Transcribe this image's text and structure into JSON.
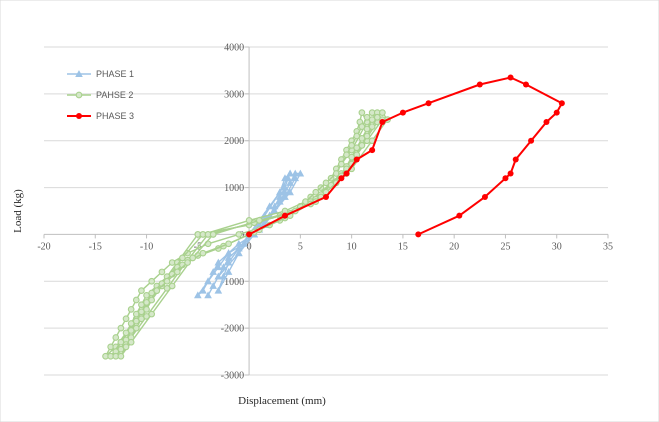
{
  "chart_data": {
    "type": "scatter",
    "title": "",
    "xlabel": "Displacement (mm)",
    "ylabel": "Load (kg)",
    "xlim": [
      -20,
      35
    ],
    "ylim": [
      -3000,
      4000
    ],
    "x_ticks": [
      -20,
      -15,
      -10,
      -5,
      0,
      5,
      10,
      15,
      20,
      25,
      30,
      35
    ],
    "y_ticks": [
      -3000,
      -2000,
      -1000,
      0,
      1000,
      2000,
      3000,
      4000
    ],
    "x_tick_labels": [
      "-20",
      "-15",
      "-10",
      "-5",
      "0",
      "5",
      "10",
      "15",
      "20",
      "25",
      "30",
      "35"
    ],
    "y_tick_labels": [
      "-3000",
      "-2000",
      "-1000",
      "0",
      "1000",
      "2000",
      "3000",
      "4000"
    ],
    "grid": "horizontal",
    "legend_position": "top-left",
    "series": [
      {
        "name": "PHASE 1",
        "color": "#9dc3e6",
        "marker": "triangle",
        "loops": [
          [
            [
              0,
              0
            ],
            [
              1,
              200
            ],
            [
              2,
              400
            ],
            [
              2.5,
              600
            ],
            [
              3,
              800
            ],
            [
              3.5,
              1000
            ],
            [
              3.8,
              1200
            ],
            [
              4,
              1300
            ],
            [
              4.5,
              1200
            ],
            [
              3.5,
              800
            ],
            [
              2,
              400
            ],
            [
              0.5,
              0
            ],
            [
              -1,
              -200
            ],
            [
              -2,
              -400
            ],
            [
              -3,
              -600
            ],
            [
              -3.5,
              -800
            ],
            [
              -4,
              -1000
            ],
            [
              -4.5,
              -1200
            ],
            [
              -5,
              -1300
            ],
            [
              -4,
              -1000
            ],
            [
              -3,
              -700
            ],
            [
              -2,
              -400
            ],
            [
              -0.5,
              -200
            ],
            [
              0.5,
              0
            ]
          ],
          [
            [
              0.5,
              0
            ],
            [
              1.5,
              200
            ],
            [
              2.5,
              500
            ],
            [
              3,
              700
            ],
            [
              3.5,
              900
            ],
            [
              4,
              1100
            ],
            [
              4.5,
              1300
            ],
            [
              5,
              1300
            ],
            [
              4,
              900
            ],
            [
              2.5,
              500
            ],
            [
              1,
              100
            ],
            [
              -1,
              -300
            ],
            [
              -2,
              -500
            ],
            [
              -2.5,
              -700
            ],
            [
              -3,
              -900
            ],
            [
              -3.5,
              -1100
            ],
            [
              -4,
              -1300
            ],
            [
              -3,
              -900
            ],
            [
              -1,
              -400
            ],
            [
              0.5,
              0
            ]
          ],
          [
            [
              0,
              0
            ],
            [
              1,
              300
            ],
            [
              2,
              600
            ],
            [
              3,
              900
            ],
            [
              3.5,
              1200
            ],
            [
              4,
              1300
            ],
            [
              3,
              900
            ],
            [
              1.5,
              400
            ],
            [
              0,
              0
            ],
            [
              -1,
              -300
            ],
            [
              -2,
              -600
            ],
            [
              -2.5,
              -900
            ],
            [
              -3,
              -1200
            ],
            [
              -2,
              -800
            ],
            [
              -1,
              -400
            ],
            [
              0,
              0
            ]
          ]
        ]
      },
      {
        "name": "PAHSE 2",
        "color": "#a9d18e",
        "marker": "circle",
        "loops": [
          [
            [
              -5,
              0
            ],
            [
              0,
              200
            ],
            [
              3,
              400
            ],
            [
              5,
              600
            ],
            [
              6,
              800
            ],
            [
              7,
              1000
            ],
            [
              8,
              1200
            ],
            [
              8.5,
              1400
            ],
            [
              9,
              1600
            ],
            [
              9.5,
              1800
            ],
            [
              10,
              2000
            ],
            [
              10.5,
              2200
            ],
            [
              10.8,
              2400
            ],
            [
              11,
              2600
            ],
            [
              11.5,
              2400
            ],
            [
              10,
              1800
            ],
            [
              8,
              1200
            ],
            [
              5,
              600
            ],
            [
              2,
              200
            ],
            [
              -1,
              0
            ],
            [
              -4,
              -200
            ],
            [
              -6,
              -400
            ],
            [
              -7.5,
              -600
            ],
            [
              -8.5,
              -800
            ],
            [
              -9.5,
              -1000
            ],
            [
              -10.5,
              -1200
            ],
            [
              -11,
              -1400
            ],
            [
              -11.5,
              -1600
            ],
            [
              -12,
              -1800
            ],
            [
              -12.5,
              -2000
            ],
            [
              -13,
              -2200
            ],
            [
              -13.5,
              -2400
            ],
            [
              -14,
              -2600
            ],
            [
              -13,
              -2400
            ],
            [
              -11,
              -1800
            ],
            [
              -9,
              -1200
            ],
            [
              -7,
              -600
            ],
            [
              -5,
              0
            ]
          ],
          [
            [
              -4.5,
              0
            ],
            [
              0,
              300
            ],
            [
              3.5,
              500
            ],
            [
              5.5,
              700
            ],
            [
              6.5,
              900
            ],
            [
              7.5,
              1100
            ],
            [
              8.5,
              1300
            ],
            [
              9,
              1500
            ],
            [
              9.5,
              1700
            ],
            [
              10,
              1900
            ],
            [
              10.5,
              2100
            ],
            [
              11,
              2300
            ],
            [
              11.5,
              2500
            ],
            [
              12,
              2600
            ],
            [
              12.5,
              2400
            ],
            [
              11,
              1900
            ],
            [
              9,
              1300
            ],
            [
              6,
              700
            ],
            [
              3,
              300
            ],
            [
              0,
              0
            ],
            [
              -3,
              -300
            ],
            [
              -5.5,
              -500
            ],
            [
              -7,
              -700
            ],
            [
              -8,
              -900
            ],
            [
              -9,
              -1100
            ],
            [
              -10,
              -1300
            ],
            [
              -10.5,
              -1500
            ],
            [
              -11,
              -1700
            ],
            [
              -11.5,
              -1900
            ],
            [
              -12,
              -2100
            ],
            [
              -12.5,
              -2300
            ],
            [
              -13,
              -2500
            ],
            [
              -13.5,
              -2600
            ],
            [
              -12.5,
              -2300
            ],
            [
              -10.5,
              -1700
            ],
            [
              -8.5,
              -1100
            ],
            [
              -6.5,
              -500
            ],
            [
              -4.5,
              0
            ]
          ],
          [
            [
              -4,
              0
            ],
            [
              0.5,
              250
            ],
            [
              4,
              450
            ],
            [
              6,
              650
            ],
            [
              7,
              850
            ],
            [
              8,
              1050
            ],
            [
              9,
              1250
            ],
            [
              9.5,
              1450
            ],
            [
              10,
              1650
            ],
            [
              10.5,
              1850
            ],
            [
              11,
              2050
            ],
            [
              11.5,
              2250
            ],
            [
              12,
              2450
            ],
            [
              12.5,
              2600
            ],
            [
              13,
              2450
            ],
            [
              11.5,
              2000
            ],
            [
              9.5,
              1400
            ],
            [
              6.5,
              750
            ],
            [
              3.5,
              350
            ],
            [
              0.5,
              50
            ],
            [
              -2.5,
              -250
            ],
            [
              -5,
              -450
            ],
            [
              -6.5,
              -650
            ],
            [
              -7.5,
              -850
            ],
            [
              -8.5,
              -1050
            ],
            [
              -9.5,
              -1250
            ],
            [
              -10,
              -1450
            ],
            [
              -10.5,
              -1650
            ],
            [
              -11,
              -1850
            ],
            [
              -11.5,
              -2050
            ],
            [
              -12,
              -2250
            ],
            [
              -12.5,
              -2450
            ],
            [
              -13,
              -2600
            ],
            [
              -12,
              -2350
            ],
            [
              -10,
              -1750
            ],
            [
              -8,
              -1150
            ],
            [
              -6,
              -550
            ],
            [
              -4,
              0
            ]
          ],
          [
            [
              -3.5,
              0
            ],
            [
              1,
              300
            ],
            [
              4.5,
              500
            ],
            [
              6.5,
              700
            ],
            [
              7.5,
              900
            ],
            [
              8.5,
              1100
            ],
            [
              9.5,
              1300
            ],
            [
              10,
              1500
            ],
            [
              10.5,
              1700
            ],
            [
              11,
              1900
            ],
            [
              11.5,
              2100
            ],
            [
              12,
              2300
            ],
            [
              12.5,
              2500
            ],
            [
              13,
              2600
            ],
            [
              13.5,
              2450
            ],
            [
              12,
              2000
            ],
            [
              10,
              1400
            ],
            [
              7,
              800
            ],
            [
              4,
              400
            ],
            [
              1,
              100
            ],
            [
              -2,
              -200
            ],
            [
              -4.5,
              -400
            ],
            [
              -6,
              -600
            ],
            [
              -7,
              -800
            ],
            [
              -8,
              -1000
            ],
            [
              -9,
              -1200
            ],
            [
              -9.5,
              -1400
            ],
            [
              -10,
              -1600
            ],
            [
              -10.5,
              -1800
            ],
            [
              -11,
              -2000
            ],
            [
              -11.5,
              -2200
            ],
            [
              -12,
              -2400
            ],
            [
              -12.5,
              -2600
            ],
            [
              -11.5,
              -2300
            ],
            [
              -9.5,
              -1700
            ],
            [
              -7.5,
              -1100
            ],
            [
              -5.5,
              -500
            ],
            [
              -3.5,
              0
            ]
          ]
        ]
      },
      {
        "name": "PHASE 3",
        "color": "#ff0000",
        "marker": "circle",
        "loops": [
          [
            [
              0,
              0
            ],
            [
              3.5,
              400
            ],
            [
              7.5,
              800
            ],
            [
              9,
              1200
            ],
            [
              9.5,
              1300
            ],
            [
              10.5,
              1600
            ],
            [
              12,
              1800
            ],
            [
              13,
              2400
            ],
            [
              15,
              2600
            ],
            [
              17.5,
              2800
            ],
            [
              22.5,
              3200
            ],
            [
              25.5,
              3350
            ],
            [
              27,
              3200
            ],
            [
              30.5,
              2800
            ],
            [
              30,
              2600
            ],
            [
              29,
              2400
            ],
            [
              27.5,
              2000
            ],
            [
              26,
              1600
            ],
            [
              25.5,
              1300
            ],
            [
              25,
              1200
            ],
            [
              23,
              800
            ],
            [
              20.5,
              400
            ],
            [
              16.5,
              0
            ]
          ]
        ]
      }
    ]
  }
}
